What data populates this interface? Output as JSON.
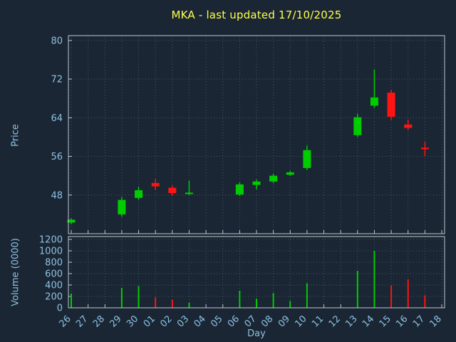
{
  "chart_data": {
    "type": "candlestick",
    "title": "MKA - last updated 17/10/2025",
    "xlabel": "Day",
    "price_axis": {
      "label": "Price",
      "ticks": [
        48,
        56,
        64,
        72,
        80
      ],
      "range": [
        40,
        81
      ]
    },
    "volume_axis": {
      "label": "Volume (0000)",
      "ticks": [
        0,
        200,
        400,
        600,
        800,
        1000,
        1200
      ],
      "range": [
        0,
        1250
      ]
    },
    "days": [
      "26",
      "27",
      "28",
      "29",
      "30",
      "01",
      "02",
      "03",
      "04",
      "05",
      "06",
      "07",
      "08",
      "09",
      "10",
      "11",
      "12",
      "13",
      "14",
      "15",
      "16",
      "17",
      "18"
    ],
    "candles": [
      {
        "day": "26",
        "open": 42.3,
        "high": 43.2,
        "low": 42.0,
        "close": 42.9,
        "volume": 250
      },
      {
        "day": "29",
        "open": 44.0,
        "high": 47.6,
        "low": 43.5,
        "close": 47.0,
        "volume": 350
      },
      {
        "day": "30",
        "open": 47.4,
        "high": 49.7,
        "low": 47.0,
        "close": 49.0,
        "volume": 380
      },
      {
        "day": "01",
        "open": 50.5,
        "high": 51.3,
        "low": 49.0,
        "close": 49.8,
        "volume": 180
      },
      {
        "day": "02",
        "open": 49.5,
        "high": 50.0,
        "low": 47.9,
        "close": 48.4,
        "volume": 140
      },
      {
        "day": "03",
        "open": 48.2,
        "high": 51.0,
        "low": 48.0,
        "close": 48.5,
        "volume": 90
      },
      {
        "day": "06",
        "open": 48.1,
        "high": 50.6,
        "low": 47.8,
        "close": 50.2,
        "volume": 300
      },
      {
        "day": "07",
        "open": 50.1,
        "high": 51.2,
        "low": 49.2,
        "close": 50.8,
        "volume": 160
      },
      {
        "day": "08",
        "open": 50.8,
        "high": 52.4,
        "low": 50.5,
        "close": 52.0,
        "volume": 260
      },
      {
        "day": "09",
        "open": 52.2,
        "high": 53.0,
        "low": 52.0,
        "close": 52.7,
        "volume": 120
      },
      {
        "day": "10",
        "open": 53.6,
        "high": 58.2,
        "low": 53.2,
        "close": 57.3,
        "volume": 430
      },
      {
        "day": "13",
        "open": 60.4,
        "high": 64.8,
        "low": 60.0,
        "close": 64.1,
        "volume": 650
      },
      {
        "day": "14",
        "open": 66.5,
        "high": 74.0,
        "low": 66.0,
        "close": 68.2,
        "volume": 1000
      },
      {
        "day": "15",
        "open": 69.2,
        "high": 69.8,
        "low": 63.5,
        "close": 64.2,
        "volume": 390
      },
      {
        "day": "16",
        "open": 62.6,
        "high": 63.6,
        "low": 61.5,
        "close": 61.9,
        "volume": 500
      },
      {
        "day": "17",
        "open": 57.8,
        "high": 59.0,
        "low": 56.0,
        "close": 57.5,
        "volume": 220
      }
    ],
    "colors": {
      "up": "#00cc00",
      "down": "#ff1414",
      "background": "#1a2633",
      "grid": "#44566a",
      "axis_text": "#8fc1e3",
      "title": "#ffff4d",
      "border": "#c0c8d0"
    },
    "layout": {
      "grid": "dotted",
      "legend": "none"
    }
  }
}
